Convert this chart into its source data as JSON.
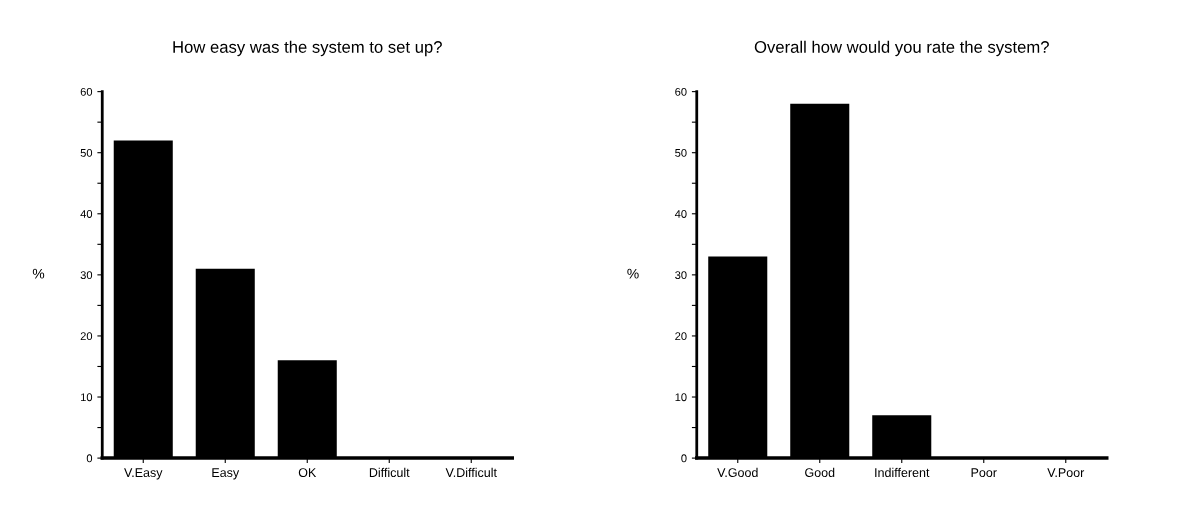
{
  "chart_data": [
    {
      "type": "bar",
      "title": "How easy was the system to set up?",
      "ylabel": "%",
      "categories": [
        "V.Easy",
        "Easy",
        "OK",
        "Difficult",
        "V.Difficult"
      ],
      "values": [
        52,
        31,
        16,
        0,
        0
      ],
      "color": "#000000",
      "ylim": [
        0,
        60
      ],
      "yticks": [
        0,
        {
          "value": 5,
          "label": null
        },
        10,
        {
          "value": 15,
          "label": null
        },
        20,
        {
          "value": 25,
          "label": null
        },
        30,
        {
          "value": 35,
          "label": null
        },
        40,
        {
          "value": 45,
          "label": null
        },
        50,
        {
          "value": 55,
          "label": null
        },
        60
      ],
      "grid": false,
      "legend": false
    },
    {
      "type": "bar",
      "title": "Overall how would you rate the system?",
      "ylabel": "%",
      "categories": [
        "V.Good",
        "Good",
        "Indifferent",
        "Poor",
        "V.Poor"
      ],
      "values": [
        33,
        58,
        7,
        0,
        0
      ],
      "color": "#000000",
      "ylim": [
        0,
        60
      ],
      "yticks": [
        0,
        {
          "value": 5,
          "label": null
        },
        10,
        {
          "value": 15,
          "label": null
        },
        20,
        {
          "value": 25,
          "label": null
        },
        30,
        {
          "value": 35,
          "label": null
        },
        40,
        {
          "value": 45,
          "label": null
        },
        50,
        {
          "value": 55,
          "label": null
        },
        60
      ],
      "grid": false,
      "legend": false
    }
  ]
}
